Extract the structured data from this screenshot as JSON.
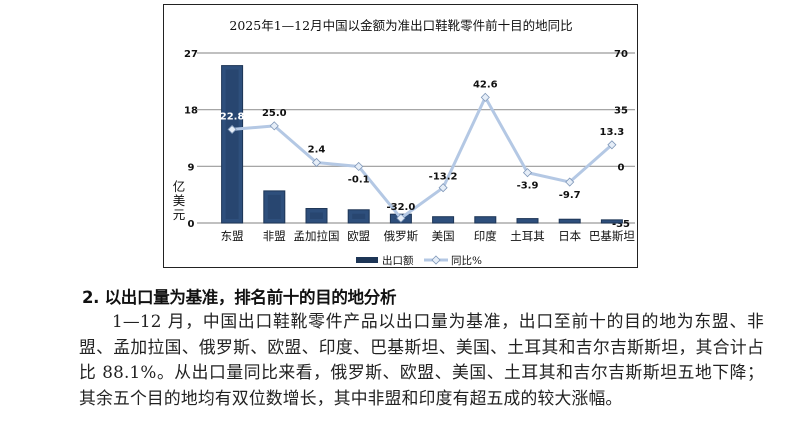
{
  "chart_data": {
    "type": "bar+line",
    "title": "2025年1—12月中国以金额为准出口鞋靴零件前十目的地同比",
    "categories": [
      "东盟",
      "非盟",
      "孟加拉国",
      "欧盟",
      "俄罗斯",
      "美国",
      "印度",
      "土耳其",
      "日本",
      "巴基斯坦"
    ],
    "series": [
      {
        "name": "出口额",
        "type": "bar",
        "axis": "left",
        "values": [
          25.0,
          5.1,
          2.3,
          2.1,
          1.4,
          1.0,
          1.0,
          0.7,
          0.6,
          0.5
        ]
      },
      {
        "name": "同比%",
        "type": "line",
        "axis": "right",
        "values": [
          22.8,
          25.0,
          2.4,
          -0.1,
          -32.0,
          -13.2,
          42.6,
          -3.9,
          -9.7,
          13.3
        ],
        "labels": [
          "22.8",
          "25.0",
          "2.4",
          "-0.1",
          "-32.0",
          "-13.2",
          "42.6",
          "-3.9",
          "-9.7",
          "13.3"
        ]
      }
    ],
    "ylabel": "亿美元",
    "ylim": [
      0,
      27
    ],
    "yticks": [
      "0",
      "9",
      "18",
      "27"
    ],
    "y2lim": [
      -35,
      70
    ],
    "y2ticks": [
      "-35",
      "0",
      "35",
      "70"
    ],
    "grid": true,
    "legend_position": "bottom",
    "colors": {
      "bar": "#2e4f7c",
      "bar_dark": "#1d3556",
      "line": "#b4c8e4",
      "grid": "#9a9a9a"
    }
  },
  "text": {
    "heading": "2. 以出口量为基准，排名前十的目的地分析",
    "paragraph": "1—12 月，中国出口鞋靴零件产品以出口量为基准，出口至前十的目的地为东盟、非盟、孟加拉国、俄罗斯、欧盟、印度、巴基斯坦、美国、土耳其和吉尔吉斯斯坦，其合计占比 88.1%。从出口量同比来看，俄罗斯、欧盟、美国、土耳其和吉尔吉斯斯坦五地下降；其余五个目的地均有双位数增长，其中非盟和印度有超五成的较大涨幅。"
  }
}
